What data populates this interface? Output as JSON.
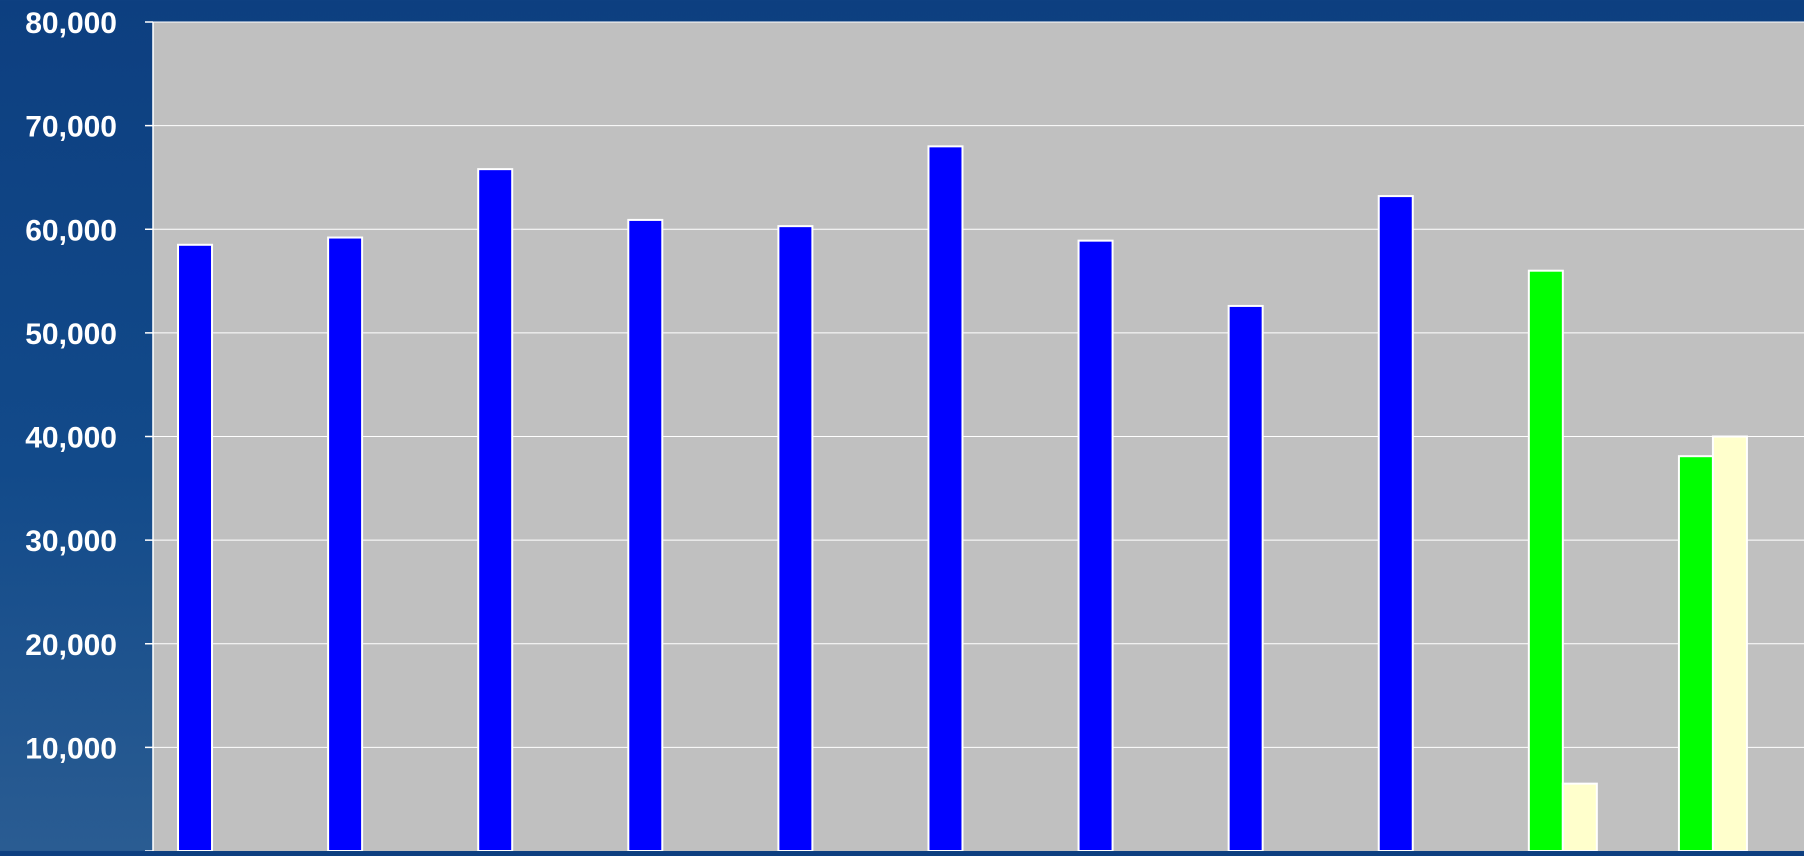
{
  "chart_data": {
    "type": "bar",
    "title": "",
    "xlabel": "",
    "ylabel": "",
    "ylim": [
      0,
      80000
    ],
    "yticks": [
      0,
      10000,
      20000,
      30000,
      40000,
      50000,
      60000,
      70000,
      80000
    ],
    "ytick_labels": [
      "",
      "10,000",
      "20,000",
      "30,000",
      "40,000",
      "50,000",
      "60,000",
      "70,000",
      "80,000"
    ],
    "grid": true,
    "legend": "none",
    "category_count": 11,
    "series": [
      {
        "values": [
          58500,
          59200,
          65800,
          60900,
          60300,
          68000,
          58900,
          52600,
          63200,
          null,
          null
        ],
        "color": "#0000ff"
      },
      {
        "values": [
          null,
          null,
          null,
          null,
          null,
          null,
          null,
          null,
          null,
          56000,
          38100
        ],
        "color": "#00ff00"
      },
      {
        "values": [
          null,
          null,
          null,
          null,
          null,
          null,
          null,
          null,
          null,
          6500,
          40000
        ],
        "color": "#ffffcc"
      }
    ],
    "colors": {
      "plot_background": "#c0c0c0",
      "gridline": "#ffffff",
      "bar_border": "#ffffff",
      "tick_text": "#ffffff"
    }
  }
}
